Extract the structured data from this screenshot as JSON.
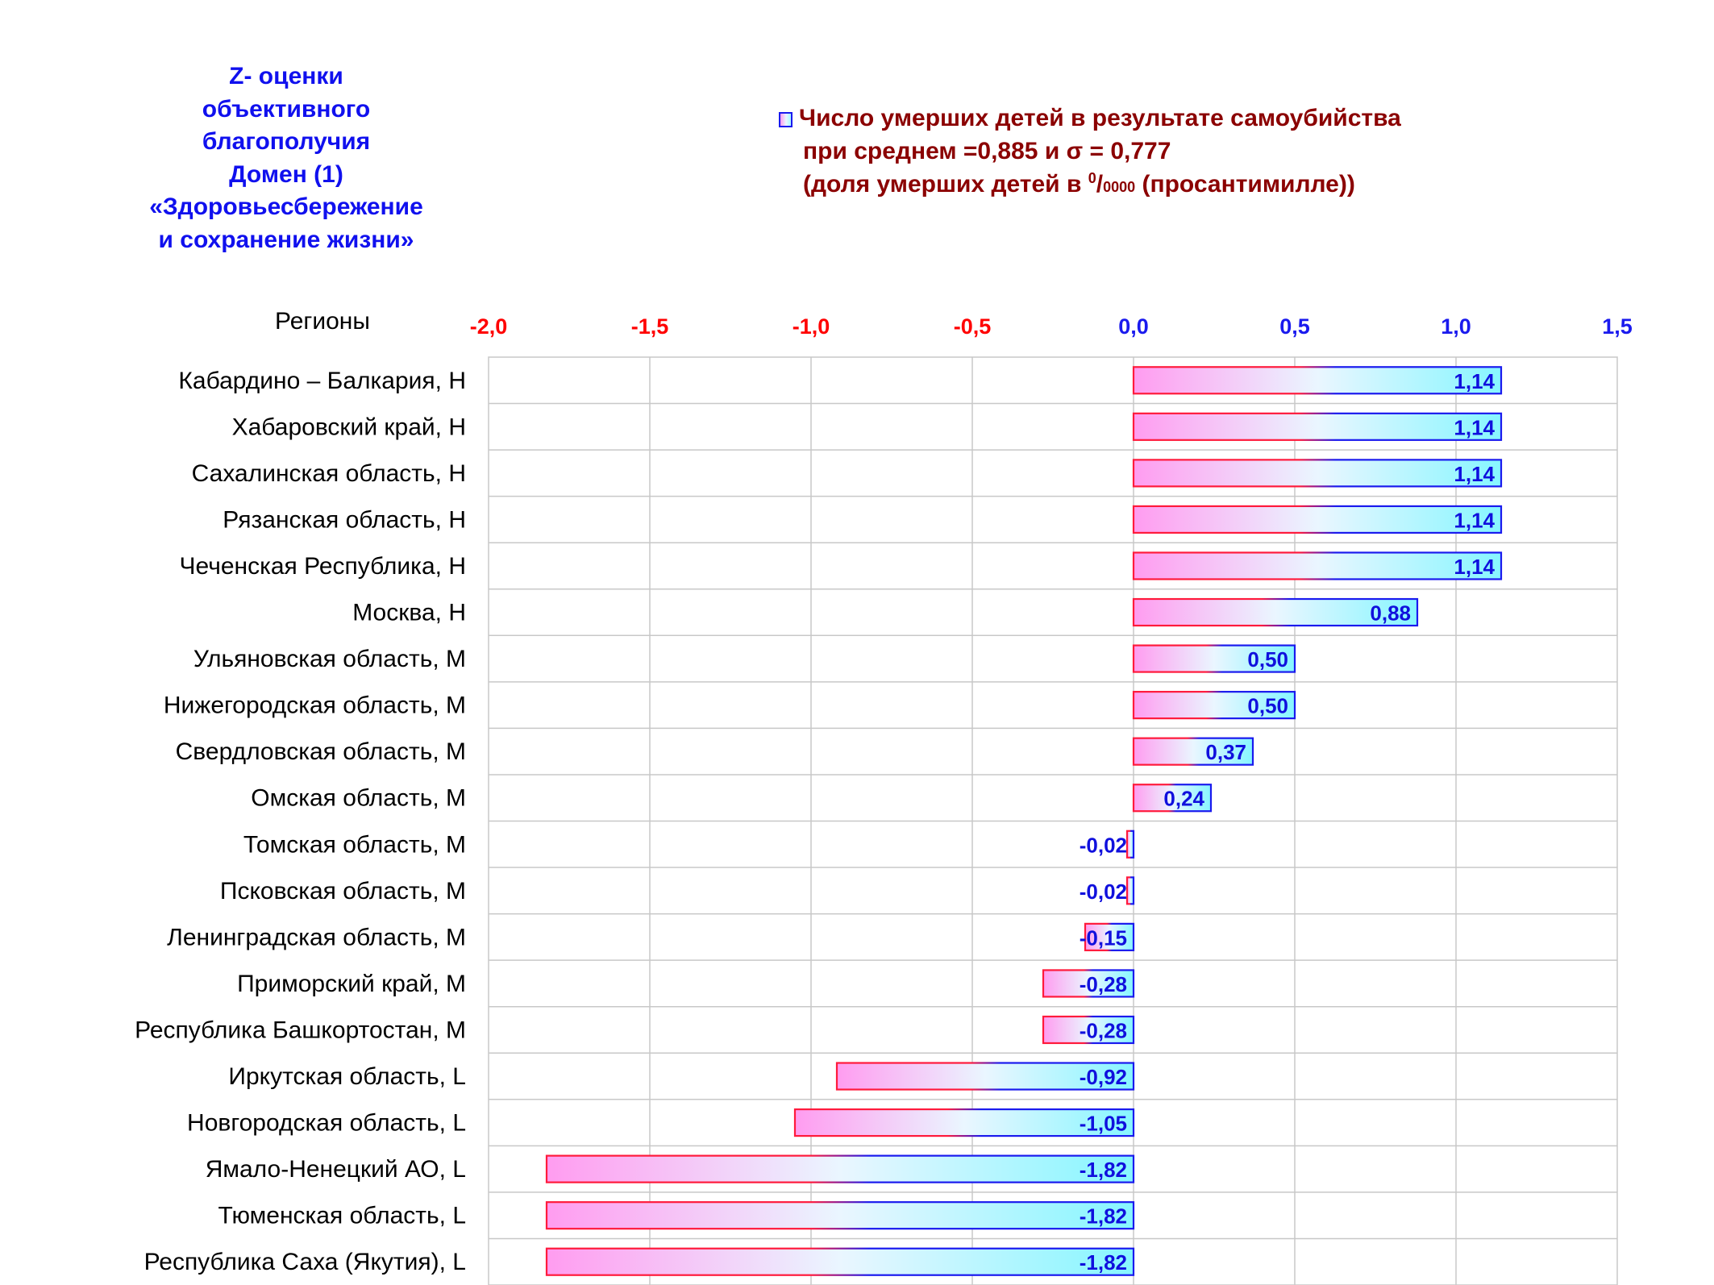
{
  "title": {
    "lines": [
      "Z- оценки",
      "объективного",
      "благополучия",
      "Домен (1)",
      "«Здоровьесбережение",
      "и сохранение жизни»"
    ]
  },
  "legend": {
    "series_name": "Число умерших детей в результате самоубийства",
    "line2": "при среднем =0,885  и σ = 0,777",
    "line3_prefix": "(доля умерших детей в ",
    "line3_sup": "0",
    "line3_slash": "/",
    "line3_sub": "0000",
    "line3_suffix": " (просантимилле))"
  },
  "colors": {
    "bar_start": "#ff9cf0",
    "bar_mid": "#eaf6ff",
    "bar_end": "#86f6ff",
    "bar_border_neg_side": "#ff1a3c",
    "bar_border_pos_side": "#1a1aee",
    "tick_negative": "#ff0000",
    "tick_positive": "#1a1aee",
    "label": "#1010dd",
    "grid": "#c8c8c8"
  },
  "chart_data": {
    "type": "bar",
    "orientation": "horizontal",
    "ylabel": "Регионы",
    "xlim": [
      -2.0,
      1.5
    ],
    "x_ticks": [
      -2.0,
      -1.5,
      -1.0,
      -0.5,
      0.0,
      0.5,
      1.0,
      1.5
    ],
    "x_tick_labels": [
      "-2,0",
      "-1,5",
      "-1,0",
      "-0,5",
      "0,0",
      "0,5",
      "1,0",
      "1,5"
    ],
    "grid": true,
    "legend_position": "top",
    "categories": [
      "Кабардино – Балкария,  H",
      "Хабаровский край,  H",
      "Сахалинская область,  H",
      "Рязанская область,  H",
      "Чеченская Республика,  H",
      "Москва,  H",
      "Ульяновская область,  M",
      "Нижегородская область,  M",
      "Свердловская область,  M",
      "Омская область,  M",
      "Томская область,  M",
      "Псковская область,  M",
      "Ленинградская область,  M",
      "Приморский край,  M",
      "Республика Башкортостан,  M",
      "Иркутская область,  L",
      "Новгородская область,  L",
      "Ямало-Ненецкий АО,  L",
      "Тюменская область,  L",
      "Республика Саха (Якутия),  L"
    ],
    "values": [
      1.14,
      1.14,
      1.14,
      1.14,
      1.14,
      0.88,
      0.5,
      0.5,
      0.37,
      0.24,
      -0.02,
      -0.02,
      -0.15,
      -0.28,
      -0.28,
      -0.92,
      -1.05,
      -1.82,
      -1.82,
      -1.82
    ],
    "value_labels": [
      "1,14",
      "1,14",
      "1,14",
      "1,14",
      "1,14",
      "0,88",
      "0,50",
      "0,50",
      "0,37",
      "0,24",
      "-0,02",
      "-0,02",
      "-0,15",
      "-0,28",
      "-0,28",
      "-0,92",
      "-1,05",
      "-1,82",
      "-1,82",
      "-1,82"
    ]
  }
}
